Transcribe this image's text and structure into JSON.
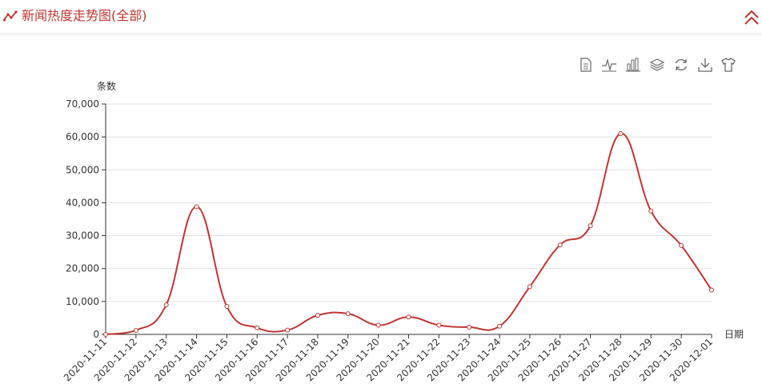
{
  "header": {
    "title": "新闻热度走势图(全部)",
    "icon": "line-chart-icon",
    "collapse_icon": "chevron-up-double-icon",
    "accent": "#c23531"
  },
  "toolbox": {
    "items": [
      "data-view-icon",
      "line-switch-icon",
      "bar-switch-icon",
      "stack-icon",
      "restore-icon",
      "save-image-icon",
      "theme-icon"
    ]
  },
  "chart_data": {
    "type": "line",
    "title": "",
    "xlabel": "日期",
    "ylabel": "条数",
    "ylim": [
      0,
      70000
    ],
    "yticks": [
      "0",
      "10,000",
      "20,000",
      "30,000",
      "40,000",
      "50,000",
      "60,000",
      "70,000"
    ],
    "grid": true,
    "smooth": true,
    "color": "#c23531",
    "categories": [
      "2020-11-11",
      "2020-11-12",
      "2020-11-13",
      "2020-11-14",
      "2020-11-15",
      "2020-11-16",
      "2020-11-17",
      "2020-11-18",
      "2020-11-19",
      "2020-11-20",
      "2020-11-21",
      "2020-11-22",
      "2020-11-23",
      "2020-11-24",
      "2020-11-25",
      "2020-11-26",
      "2020-11-27",
      "2020-11-28",
      "2020-11-29",
      "2020-11-30",
      "2020-12-01"
    ],
    "series": [
      {
        "values": [
          0,
          1200,
          9000,
          38800,
          8500,
          2000,
          1300,
          5800,
          6300,
          2800,
          5300,
          2800,
          2200,
          2500,
          14500,
          27200,
          33000,
          61000,
          37500,
          27000,
          13500
        ]
      }
    ]
  }
}
